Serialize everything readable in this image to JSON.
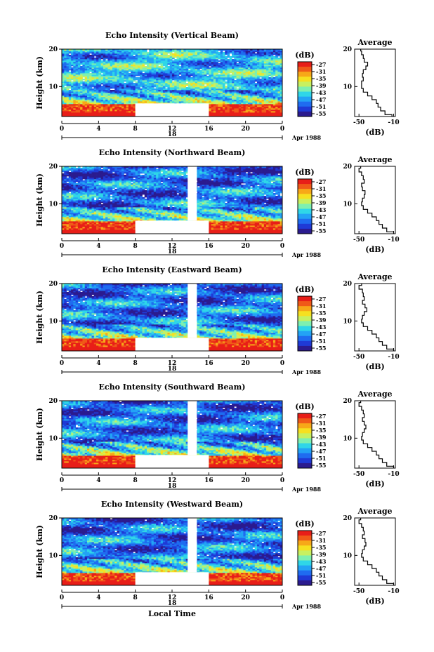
{
  "chart_data": [
    {
      "type": "heatmap",
      "title": "Echo Intensity (Vertical Beam)",
      "ylabel": "Height (km)",
      "xticks": [
        "0",
        "4",
        "8",
        "12",
        "16",
        "20",
        "0"
      ],
      "yticks": [
        "20",
        "10"
      ],
      "date_labels": [
        "18",
        "Apr 1988"
      ],
      "colorbar_unit": "(dB)",
      "colorbar_ticks": [
        "-27",
        "-31",
        "-35",
        "-39",
        "-43",
        "-47",
        "-51",
        "-55"
      ],
      "xlim": [
        0,
        24
      ],
      "ylim": [
        2,
        20
      ],
      "data_gap_hours": [
        8,
        16
      ],
      "data_gap_height_km": [
        2,
        5.5
      ],
      "average_profile": {
        "title": "Average",
        "xlabel": "(dB)",
        "xticks": [
          "-50",
          "-10"
        ],
        "yticks": [
          "20",
          "10"
        ],
        "height_km": [
          20,
          19,
          18,
          17,
          16,
          15,
          14,
          13,
          12,
          11,
          10,
          9,
          8,
          7,
          6,
          5,
          4,
          3,
          2
        ],
        "dB": [
          -48,
          -47,
          -45,
          -44,
          -40,
          -42,
          -45,
          -46,
          -45,
          -47,
          -47,
          -45,
          -40,
          -35,
          -30,
          -28,
          -25,
          -20,
          -12
        ]
      }
    },
    {
      "type": "heatmap",
      "title": "Echo Intensity (Northward Beam)",
      "ylabel": "Height (km)",
      "xticks": [
        "0",
        "4",
        "8",
        "12",
        "16",
        "20",
        "0"
      ],
      "yticks": [
        "20",
        "10"
      ],
      "date_labels": [
        "18",
        "Apr 1988"
      ],
      "colorbar_unit": "(dB)",
      "colorbar_ticks": [
        "-27",
        "-31",
        "-35",
        "-39",
        "-43",
        "-47",
        "-51",
        "-55"
      ],
      "xlim": [
        0,
        24
      ],
      "ylim": [
        2,
        20
      ],
      "data_gap_hours": [
        8,
        16
      ],
      "data_gap_height_km": [
        2,
        5.5
      ],
      "average_profile": {
        "title": "Average",
        "xlabel": "(dB)",
        "xticks": [
          "-50",
          "-10"
        ],
        "yticks": [
          "20",
          "10"
        ],
        "height_km": [
          20,
          19,
          18,
          17,
          16,
          15,
          14,
          13,
          12,
          11,
          10,
          9,
          8,
          7,
          6,
          5,
          4,
          3,
          2
        ],
        "dB": [
          -48,
          -50,
          -47,
          -45,
          -44,
          -47,
          -46,
          -43,
          -44,
          -46,
          -47,
          -45,
          -40,
          -35,
          -30,
          -27,
          -23,
          -18,
          -10
        ]
      }
    },
    {
      "type": "heatmap",
      "title": "Echo Intensity (Eastward Beam)",
      "ylabel": "Height (km)",
      "xticks": [
        "0",
        "4",
        "8",
        "12",
        "16",
        "20",
        "0"
      ],
      "yticks": [
        "20",
        "10"
      ],
      "date_labels": [
        "18",
        "Apr 1988"
      ],
      "colorbar_unit": "(dB)",
      "colorbar_ticks": [
        "-27",
        "-31",
        "-35",
        "-39",
        "-43",
        "-47",
        "-51",
        "-55"
      ],
      "xlim": [
        0,
        24
      ],
      "ylim": [
        2,
        20
      ],
      "data_gap_hours": [
        8,
        16
      ],
      "data_gap_height_km": [
        2,
        5.5
      ],
      "average_profile": {
        "title": "Average",
        "xlabel": "(dB)",
        "xticks": [
          "-50",
          "-10"
        ],
        "yticks": [
          "20",
          "10"
        ],
        "height_km": [
          20,
          19,
          18,
          17,
          16,
          15,
          14,
          13,
          12,
          11,
          10,
          9,
          8,
          7,
          6,
          5,
          4,
          3,
          2
        ],
        "dB": [
          -47,
          -50,
          -46,
          -45,
          -44,
          -46,
          -43,
          -41,
          -44,
          -46,
          -47,
          -45,
          -40,
          -35,
          -30,
          -27,
          -23,
          -18,
          -10
        ]
      }
    },
    {
      "type": "heatmap",
      "title": "Echo Intensity (Southward Beam)",
      "ylabel": "Height (km)",
      "xticks": [
        "0",
        "4",
        "8",
        "12",
        "16",
        "20",
        "0"
      ],
      "yticks": [
        "20",
        "10"
      ],
      "date_labels": [
        "18",
        "Apr 1988"
      ],
      "colorbar_unit": "(dB)",
      "colorbar_ticks": [
        "-27",
        "-31",
        "-35",
        "-39",
        "-43",
        "-47",
        "-51",
        "-55"
      ],
      "xlim": [
        0,
        24
      ],
      "ylim": [
        2,
        20
      ],
      "data_gap_hours": [
        8,
        16
      ],
      "data_gap_height_km": [
        2,
        5.5
      ],
      "average_profile": {
        "title": "Average",
        "xlabel": "(dB)",
        "xticks": [
          "-50",
          "-10"
        ],
        "yticks": [
          "20",
          "10"
        ],
        "height_km": [
          20,
          19,
          18,
          17,
          16,
          15,
          14,
          13,
          12,
          11,
          10,
          9,
          8,
          7,
          6,
          5,
          4,
          3,
          2
        ],
        "dB": [
          -48,
          -50,
          -47,
          -45,
          -44,
          -46,
          -44,
          -42,
          -44,
          -46,
          -47,
          -45,
          -40,
          -35,
          -30,
          -27,
          -23,
          -18,
          -10
        ]
      }
    },
    {
      "type": "heatmap",
      "title": "Echo Intensity (Westward Beam)",
      "ylabel": "Height (km)",
      "xticks": [
        "0",
        "4",
        "8",
        "12",
        "16",
        "20",
        "0"
      ],
      "yticks": [
        "20",
        "10"
      ],
      "date_labels": [
        "18",
        "Apr 1988"
      ],
      "colorbar_unit": "(dB)",
      "colorbar_ticks": [
        "-27",
        "-31",
        "-35",
        "-39",
        "-43",
        "-47",
        "-51",
        "-55"
      ],
      "xlim": [
        0,
        24
      ],
      "ylim": [
        2,
        20
      ],
      "data_gap_hours": [
        8,
        16
      ],
      "data_gap_height_km": [
        2,
        5.5
      ],
      "xlabel": "Local Time",
      "average_profile": {
        "title": "Average",
        "xlabel": "(dB)",
        "xticks": [
          "-50",
          "-10"
        ],
        "yticks": [
          "20",
          "10"
        ],
        "height_km": [
          20,
          19,
          18,
          17,
          16,
          15,
          14,
          13,
          12,
          11,
          10,
          9,
          8,
          7,
          6,
          5,
          4,
          3,
          2
        ],
        "dB": [
          -48,
          -50,
          -47,
          -45,
          -44,
          -46,
          -43,
          -42,
          -44,
          -46,
          -47,
          -45,
          -40,
          -35,
          -30,
          -27,
          -23,
          -18,
          -10
        ]
      }
    }
  ],
  "colormap": [
    "#2b1b8f",
    "#1f3ad6",
    "#1f6cf0",
    "#23a3f5",
    "#2fd6e8",
    "#7ef0b0",
    "#c8f060",
    "#f6e020",
    "#f7a818",
    "#f05a18",
    "#e81e18"
  ]
}
